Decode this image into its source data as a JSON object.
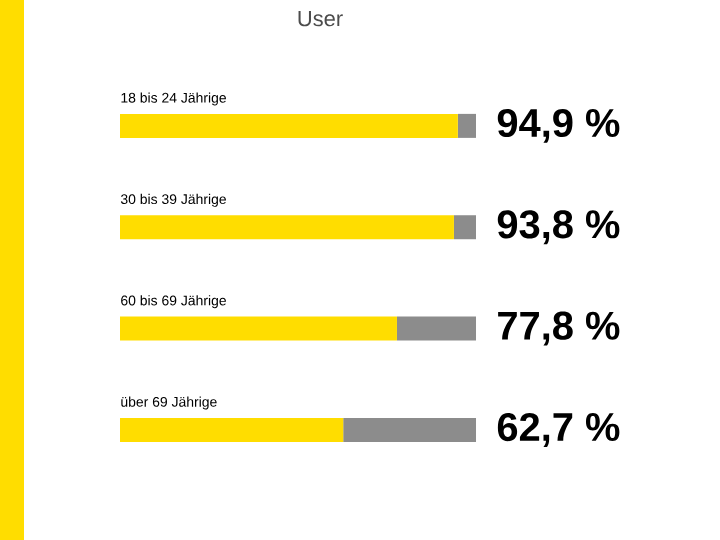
{
  "chart_data": {
    "type": "bar",
    "orientation": "horizontal",
    "stacked": true,
    "title": "User",
    "categories": [
      "18 bis 24 Jährige",
      "30 bis 39 Jährige",
      "60 bis 69 Jährige",
      "über 69 Jährige"
    ],
    "series": [
      {
        "color": "#ffdd00",
        "values": [
          94.9,
          93.8,
          77.8,
          62.7
        ],
        "value_labels": [
          "94,9 %",
          "93,8 %",
          "77,8 %",
          "62,7 %"
        ]
      },
      {
        "color": "#8c8c8c",
        "values": [
          5.1,
          6.2,
          22.2,
          37.3
        ]
      }
    ],
    "xlim": [
      0,
      100
    ],
    "tick_labels": "y"
  }
}
